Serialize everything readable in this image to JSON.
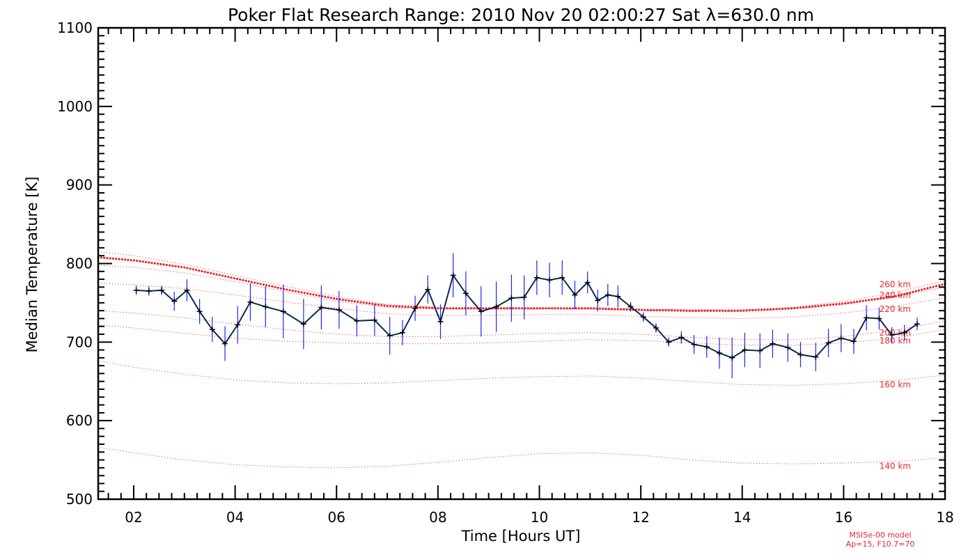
{
  "chart_data": {
    "type": "line",
    "title": "Poker Flat Research Range: 2010 Nov 20 02:00:27 Sat λ=630.0 nm",
    "xlabel": "Time [Hours UT]",
    "ylabel": "Median Temperature [K]",
    "xlim": [
      1.3,
      18
    ],
    "ylim": [
      500,
      1100
    ],
    "xticks": [
      2,
      4,
      6,
      8,
      10,
      12,
      14,
      16,
      18
    ],
    "xtick_labels": [
      "02",
      "04",
      "06",
      "08",
      "10",
      "12",
      "14",
      "16",
      "18"
    ],
    "yticks": [
      500,
      600,
      700,
      800,
      900,
      1000,
      1100
    ],
    "ytick_labels": [
      "500",
      "600",
      "700",
      "800",
      "900",
      "1000",
      "1100"
    ],
    "grid": false,
    "colors": {
      "measured": "#0a2a50",
      "error_bars": "#2020ff",
      "model": "#e8262c",
      "axes": "#000000"
    },
    "series": [
      {
        "kind": "measured",
        "x": [
          2.05,
          2.3,
          2.55,
          2.8,
          3.05,
          3.3,
          3.55,
          3.8,
          4.05,
          4.3,
          4.6,
          4.95,
          5.35,
          5.7,
          6.05,
          6.4,
          6.75,
          7.05,
          7.3,
          7.55,
          7.8,
          8.05,
          8.3,
          8.55,
          8.85,
          9.15,
          9.45,
          9.7,
          9.95,
          10.2,
          10.45,
          10.7,
          10.95,
          11.15,
          11.35,
          11.55,
          11.8,
          12.05,
          12.3,
          12.55,
          12.8,
          13.05,
          13.3,
          13.55,
          13.8,
          14.05,
          14.35,
          14.6,
          14.9,
          15.15,
          15.45,
          15.7,
          15.95,
          16.2,
          16.45,
          16.7,
          16.95,
          17.2,
          17.45
        ],
        "y": [
          766,
          765,
          766,
          752,
          766,
          739,
          716,
          698,
          722,
          751,
          745,
          739,
          723,
          744,
          741,
          727,
          728,
          708,
          712,
          743,
          767,
          726,
          785,
          762,
          739,
          745,
          756,
          757,
          782,
          779,
          782,
          760,
          776,
          753,
          760,
          758,
          745,
          732,
          718,
          700,
          706,
          697,
          694,
          686,
          680,
          690,
          689,
          698,
          693,
          684,
          681,
          699,
          705,
          701,
          731,
          730,
          709,
          712,
          723
        ],
        "y_err": [
          6,
          6,
          6,
          12,
          14,
          16,
          16,
          22,
          24,
          24,
          26,
          34,
          32,
          28,
          24,
          20,
          20,
          24,
          16,
          16,
          18,
          22,
          28,
          28,
          32,
          32,
          30,
          28,
          22,
          22,
          22,
          18,
          14,
          14,
          14,
          14,
          6,
          6,
          6,
          6,
          8,
          12,
          14,
          20,
          26,
          22,
          22,
          18,
          18,
          16,
          18,
          18,
          18,
          16,
          16,
          14,
          10,
          10,
          8
        ]
      },
      {
        "kind": "model",
        "style": "bold-dotted",
        "name": "",
        "x": [
          1.3,
          2,
          3,
          4,
          5,
          6,
          7,
          8,
          9,
          10,
          11,
          12,
          13,
          14,
          15,
          16,
          17,
          18
        ],
        "y": [
          808,
          804,
          795,
          781,
          767,
          755,
          746,
          743,
          743,
          743,
          743,
          741,
          740,
          740,
          743,
          749,
          758,
          774
        ]
      },
      {
        "kind": "model",
        "style": "dotted",
        "name": "260 km",
        "x": [
          1.3,
          2,
          3,
          4,
          5,
          6,
          7,
          8,
          9,
          10,
          11,
          12,
          13,
          14,
          15,
          16,
          17,
          18
        ],
        "y": [
          815,
          810,
          799,
          785,
          771,
          758,
          748,
          744,
          743,
          743,
          743,
          742,
          741,
          741,
          744,
          752,
          763,
          778
        ]
      },
      {
        "kind": "model",
        "style": "dotted",
        "name": "240 km",
        "x": [
          1.3,
          2,
          3,
          4,
          5,
          6,
          7,
          8,
          9,
          10,
          11,
          12,
          13,
          14,
          15,
          16,
          17,
          18
        ],
        "y": [
          798,
          795,
          788,
          777,
          764,
          752,
          744,
          742,
          742,
          742,
          742,
          740,
          739,
          739,
          742,
          748,
          757,
          770
        ]
      },
      {
        "kind": "model",
        "style": "dotted",
        "name": "220 km",
        "x": [
          1.3,
          2,
          3,
          4,
          5,
          6,
          7,
          8,
          9,
          10,
          11,
          12,
          13,
          14,
          15,
          16,
          17,
          18
        ],
        "y": [
          775,
          773,
          768,
          760,
          751,
          743,
          736,
          734,
          734,
          735,
          735,
          733,
          731,
          730,
          732,
          737,
          745,
          757
        ]
      },
      {
        "kind": "model",
        "style": "dotted",
        "name": "200 km",
        "x": [
          1.3,
          2,
          3,
          4,
          5,
          6,
          7,
          8,
          9,
          10,
          11,
          12,
          13,
          14,
          15,
          16,
          17,
          18
        ],
        "y": [
          740,
          737,
          731,
          723,
          716,
          710,
          707,
          707,
          709,
          711,
          712,
          710,
          706,
          703,
          703,
          707,
          715,
          727
        ]
      },
      {
        "kind": "model",
        "style": "dotted",
        "name": "180 km",
        "x": [
          1.3,
          2,
          3,
          4,
          5,
          6,
          7,
          8,
          9,
          10,
          11,
          12,
          13,
          14,
          15,
          16,
          17,
          18
        ],
        "y": [
          722,
          718,
          711,
          705,
          701,
          699,
          698,
          698,
          699,
          701,
          703,
          702,
          699,
          696,
          696,
          699,
          705,
          716
        ]
      },
      {
        "kind": "model",
        "style": "dotted",
        "name": "160 km",
        "x": [
          1.3,
          2,
          3,
          4,
          5,
          6,
          7,
          8,
          9,
          10,
          11,
          12,
          13,
          14,
          15,
          16,
          17,
          18
        ],
        "y": [
          676,
          668,
          659,
          652,
          648,
          647,
          648,
          651,
          654,
          656,
          657,
          654,
          650,
          646,
          645,
          647,
          651,
          658
        ]
      },
      {
        "kind": "model",
        "style": "dotted",
        "name": "140 km",
        "x": [
          1.3,
          2,
          3,
          4,
          5,
          6,
          7,
          8,
          9,
          10,
          11,
          12,
          13,
          14,
          15,
          16,
          17,
          18
        ],
        "y": [
          566,
          559,
          550,
          544,
          541,
          540,
          542,
          547,
          553,
          558,
          559,
          556,
          550,
          546,
          545,
          546,
          548,
          553
        ]
      }
    ],
    "annotations": [
      "MSISe-00 model",
      "Ap=15, F10.7=70"
    ]
  }
}
